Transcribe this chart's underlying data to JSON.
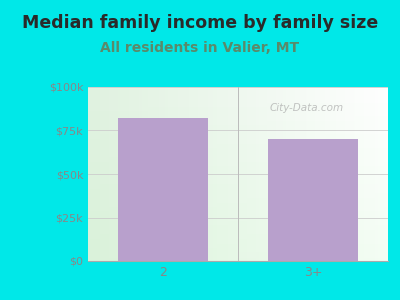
{
  "title": "Median family income by family size",
  "subtitle": "All residents in Valier, MT",
  "categories": [
    "2",
    "3+"
  ],
  "values": [
    82000,
    70000
  ],
  "bar_color": "#b8a0cc",
  "outer_bg": "#00e8e8",
  "title_color": "#2a2a2a",
  "subtitle_color": "#5a8a6a",
  "tick_label_color": "#888888",
  "ylim": [
    0,
    100000
  ],
  "yticks": [
    0,
    25000,
    50000,
    75000,
    100000
  ],
  "ytick_labels": [
    "$0",
    "$25k",
    "$50k",
    "$75k",
    "$100k"
  ],
  "watermark": "City-Data.com",
  "title_fontsize": 12.5,
  "subtitle_fontsize": 10
}
